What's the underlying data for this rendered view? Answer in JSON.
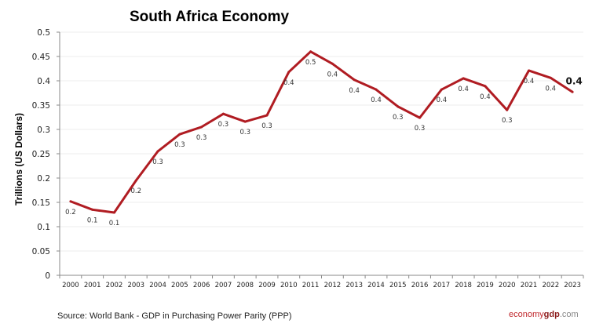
{
  "chart_data": {
    "type": "line",
    "title": "South Africa Economy",
    "xlabel": "",
    "ylabel": "Trillions (US Dollars)",
    "ylim": [
      0,
      0.5
    ],
    "yticks": [
      "0",
      "0.05",
      "0.1",
      "0.15",
      "0.2",
      "0.25",
      "0.3",
      "0.35",
      "0.4",
      "0.45",
      "0.5"
    ],
    "grid": true,
    "categories": [
      "2000",
      "2001",
      "2002",
      "2003",
      "2004",
      "2005",
      "2006",
      "2007",
      "2008",
      "2009",
      "2010",
      "2011",
      "2012",
      "2013",
      "2014",
      "2015",
      "2016",
      "2017",
      "2018",
      "2019",
      "2020",
      "2021",
      "2022",
      "2023"
    ],
    "series": [
      {
        "values": [
          0.152,
          0.135,
          0.129,
          0.195,
          0.255,
          0.29,
          0.305,
          0.332,
          0.316,
          0.329,
          0.418,
          0.46,
          0.435,
          0.402,
          0.382,
          0.347,
          0.324,
          0.382,
          0.405,
          0.389,
          0.34,
          0.421,
          0.406,
          0.377
        ],
        "data_labels": [
          "0.2",
          "0.1",
          "0.1",
          "0.2",
          "0.3",
          "0.3",
          "0.3",
          "0.3",
          "0.3",
          "0.3",
          "0.4",
          "0.5",
          "0.4",
          "0.4",
          "0.4",
          "0.3",
          "0.3",
          "0.4",
          "0.4",
          "0.4",
          "0.3",
          "0.4",
          "0.4",
          "0.4"
        ],
        "color": "#b01c22"
      }
    ]
  },
  "footer": {
    "source": "Source: World Bank -  GDP  in Purchasing Power Parity (PPP)",
    "logo_part1": "economy",
    "logo_part2": "gdp",
    "logo_part3": ".com"
  }
}
